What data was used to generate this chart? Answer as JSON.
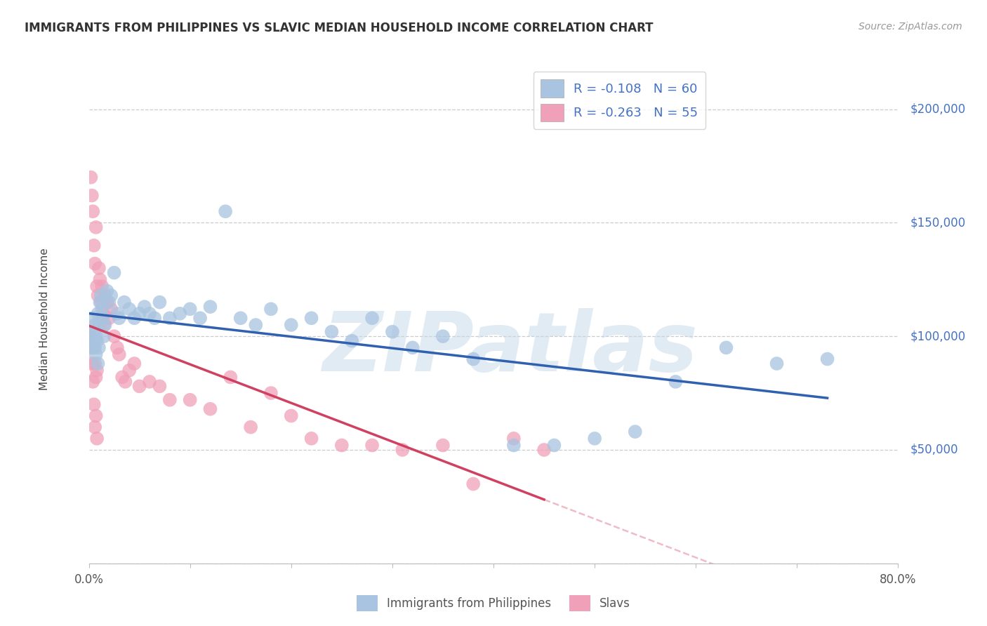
{
  "title": "IMMIGRANTS FROM PHILIPPINES VS SLAVIC MEDIAN HOUSEHOLD INCOME CORRELATION CHART",
  "source": "Source: ZipAtlas.com",
  "ylabel": "Median Household Income",
  "xlim": [
    0,
    0.8
  ],
  "ylim": [
    0,
    215000
  ],
  "R_phil": -0.108,
  "N_phil": 60,
  "R_slav": -0.263,
  "N_slav": 55,
  "legend_label1": "R = -0.108   N = 60",
  "legend_label2": "R = -0.263   N = 55",
  "color_phil": "#a8c4e0",
  "color_slav": "#f0a0b8",
  "line_color_phil": "#3060b0",
  "line_color_slav": "#d04060",
  "watermark": "ZIPatlas",
  "ytick_positions": [
    0,
    50000,
    100000,
    150000,
    200000
  ],
  "ytick_labels": [
    "",
    "$50,000",
    "$100,000",
    "$150,000",
    "$200,000"
  ],
  "phil_x": [
    0.002,
    0.003,
    0.004,
    0.005,
    0.005,
    0.006,
    0.006,
    0.007,
    0.007,
    0.008,
    0.009,
    0.009,
    0.01,
    0.01,
    0.011,
    0.012,
    0.013,
    0.014,
    0.015,
    0.016,
    0.018,
    0.02,
    0.022,
    0.025,
    0.028,
    0.03,
    0.035,
    0.04,
    0.045,
    0.05,
    0.055,
    0.06,
    0.065,
    0.07,
    0.08,
    0.09,
    0.1,
    0.11,
    0.12,
    0.135,
    0.15,
    0.165,
    0.18,
    0.2,
    0.22,
    0.24,
    0.26,
    0.28,
    0.3,
    0.32,
    0.35,
    0.38,
    0.42,
    0.46,
    0.5,
    0.54,
    0.58,
    0.63,
    0.68,
    0.73
  ],
  "phil_y": [
    100000,
    95000,
    108000,
    102000,
    97000,
    105000,
    95000,
    100000,
    92000,
    98000,
    110000,
    88000,
    105000,
    95000,
    115000,
    118000,
    112000,
    108000,
    100000,
    105000,
    120000,
    115000,
    118000,
    128000,
    110000,
    108000,
    115000,
    112000,
    108000,
    110000,
    113000,
    110000,
    108000,
    115000,
    108000,
    110000,
    112000,
    108000,
    113000,
    155000,
    108000,
    105000,
    112000,
    105000,
    108000,
    102000,
    98000,
    108000,
    102000,
    95000,
    100000,
    90000,
    52000,
    52000,
    55000,
    58000,
    80000,
    95000,
    88000,
    90000
  ],
  "slav_x": [
    0.001,
    0.002,
    0.002,
    0.003,
    0.003,
    0.004,
    0.004,
    0.005,
    0.005,
    0.006,
    0.006,
    0.007,
    0.007,
    0.008,
    0.008,
    0.009,
    0.01,
    0.011,
    0.012,
    0.013,
    0.014,
    0.015,
    0.016,
    0.018,
    0.02,
    0.022,
    0.025,
    0.028,
    0.03,
    0.033,
    0.036,
    0.04,
    0.045,
    0.05,
    0.06,
    0.07,
    0.08,
    0.1,
    0.12,
    0.14,
    0.16,
    0.18,
    0.2,
    0.22,
    0.25,
    0.28,
    0.31,
    0.35,
    0.38,
    0.42,
    0.005,
    0.006,
    0.007,
    0.008,
    0.45
  ],
  "slav_y": [
    100000,
    170000,
    95000,
    162000,
    88000,
    155000,
    80000,
    140000,
    95000,
    132000,
    88000,
    148000,
    82000,
    122000,
    85000,
    118000,
    130000,
    125000,
    115000,
    122000,
    110000,
    105000,
    118000,
    115000,
    108000,
    112000,
    100000,
    95000,
    92000,
    82000,
    80000,
    85000,
    88000,
    78000,
    80000,
    78000,
    72000,
    72000,
    68000,
    82000,
    60000,
    75000,
    65000,
    55000,
    52000,
    52000,
    50000,
    52000,
    35000,
    55000,
    70000,
    60000,
    65000,
    55000,
    50000
  ]
}
